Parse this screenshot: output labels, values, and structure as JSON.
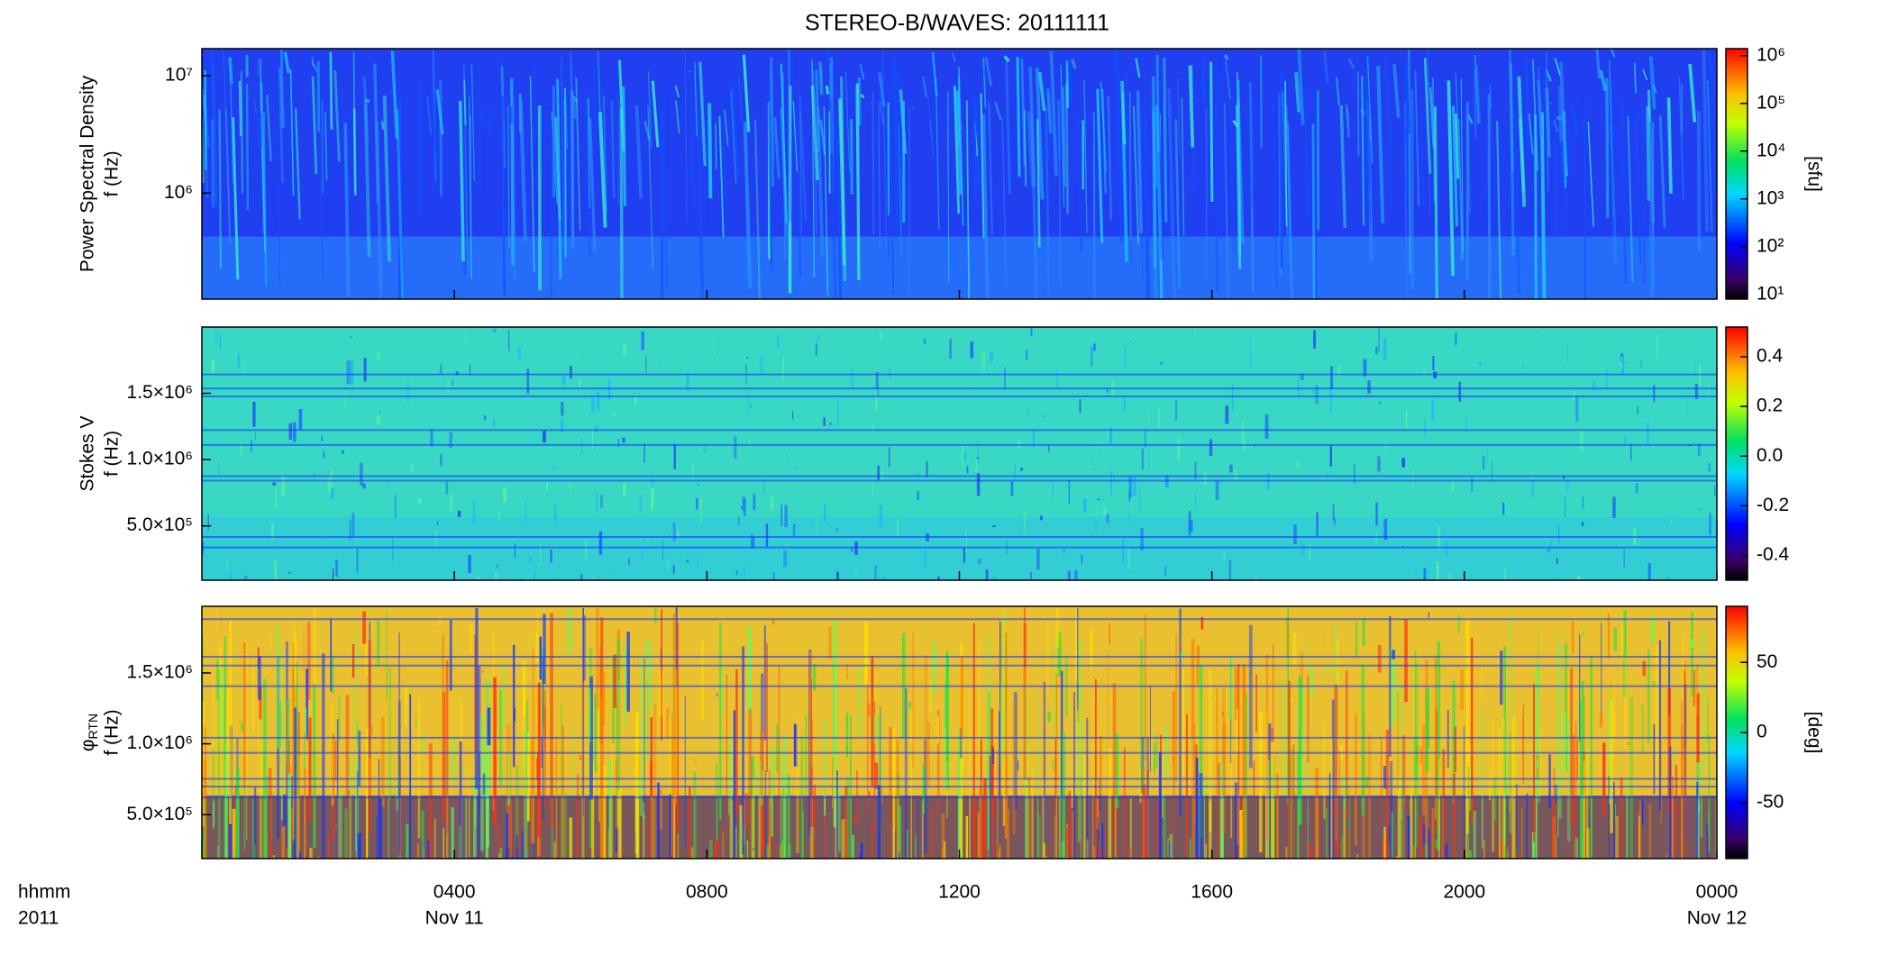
{
  "chart_data": [
    {
      "type": "spectrogram",
      "title": "STEREO-B/WAVES: 20111111",
      "ylabel": [
        "Power Spectral Density",
        "f (Hz)"
      ],
      "yscale": "log",
      "ylim": [
        125000,
        17000000
      ],
      "yticks": [
        {
          "value": 1000000,
          "label": "10⁶"
        },
        {
          "value": 10000000,
          "label": "10⁷"
        }
      ],
      "cscale": "log",
      "clim": [
        8,
        1400000
      ],
      "cticks": [
        {
          "value": 10,
          "label": "10¹"
        },
        {
          "value": 100,
          "label": "10²"
        },
        {
          "value": 1000,
          "label": "10³"
        },
        {
          "value": 10000,
          "label": "10⁴"
        },
        {
          "value": 100000,
          "label": "10⁵"
        },
        {
          "value": 1000000,
          "label": "10⁶"
        }
      ],
      "clabel": "[sfu]"
    },
    {
      "type": "spectrogram",
      "ylabel": [
        "Stokes V",
        "f (Hz)"
      ],
      "ylim": [
        90000,
        2000000
      ],
      "yticks": [
        {
          "value": 500000,
          "label": "5.0×10⁵"
        },
        {
          "value": 1000000,
          "label": "1.0×10⁶"
        },
        {
          "value": 1500000,
          "label": "1.5×10⁶"
        }
      ],
      "clim": [
        -0.5,
        0.52
      ],
      "cticks": [
        -0.4,
        -0.2,
        {
          "value": 0,
          "label": "0.0"
        },
        0.2,
        0.4
      ]
    },
    {
      "type": "spectrogram",
      "ylabel_symbol": "φ",
      "ylabel_subscript": "RTN",
      "ylabel": [
        "f (Hz)"
      ],
      "ylim": [
        190000,
        1970000
      ],
      "yticks": [
        {
          "value": 500000,
          "label": "5.0×10⁵"
        },
        {
          "value": 1000000,
          "label": "1.0×10⁶"
        },
        {
          "value": 1500000,
          "label": "1.5×10⁶"
        }
      ],
      "clim": [
        -90,
        90
      ],
      "cticks": [
        -50,
        0,
        50
      ],
      "clabel": "[deg]",
      "xlim": [
        0,
        24
      ],
      "xticks": [
        {
          "value": 4,
          "label": "0400"
        },
        {
          "value": 8,
          "label": "0800"
        },
        {
          "value": 12,
          "label": "1200"
        },
        {
          "value": 16,
          "label": "1600"
        },
        {
          "value": 20,
          "label": "2000"
        },
        {
          "value": 24,
          "label": "0000"
        }
      ],
      "xtick_dates": [
        {
          "value": 4,
          "label": "Nov 11"
        },
        {
          "value": 24,
          "label": "Nov 12"
        }
      ],
      "xunit": "hhmm",
      "year": "2011"
    }
  ]
}
